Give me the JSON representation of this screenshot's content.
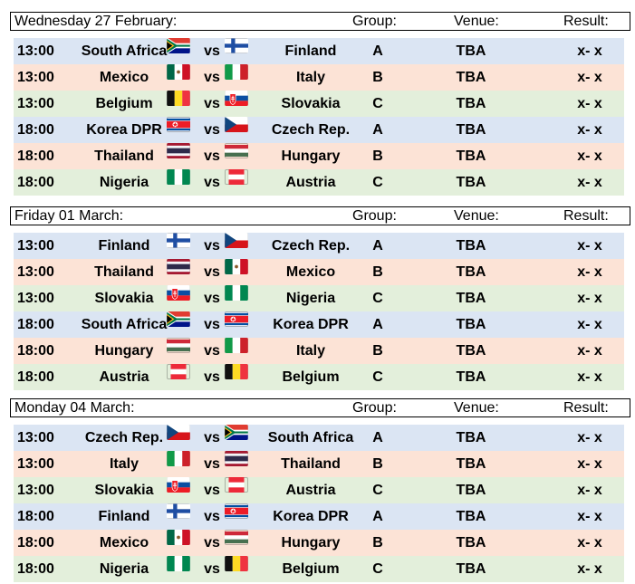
{
  "columns": {
    "group": "Group:",
    "venue": "Venue:",
    "result": "Result:"
  },
  "colors": {
    "A": "#dbe5f3",
    "B": "#fce3d6",
    "C": "#e3efdb"
  },
  "days": [
    {
      "date": "Wednesday 27 February:",
      "matches": [
        {
          "time": "13:00",
          "home": "South Africa",
          "home_flag": "south-africa",
          "vs": "vs",
          "away": "Finland",
          "away_flag": "finland",
          "group": "A",
          "venue": "TBA",
          "result": "x- x"
        },
        {
          "time": "13:00",
          "home": "Mexico",
          "home_flag": "mexico",
          "vs": "vs",
          "away": "Italy",
          "away_flag": "italy",
          "group": "B",
          "venue": "TBA",
          "result": "x- x"
        },
        {
          "time": "13:00",
          "home": "Belgium",
          "home_flag": "belgium",
          "vs": "vs",
          "away": "Slovakia",
          "away_flag": "slovakia",
          "group": "C",
          "venue": "TBA",
          "result": "x- x"
        },
        {
          "time": "18:00",
          "home": "Korea DPR",
          "home_flag": "korea-dpr",
          "vs": "vs",
          "away": "Czech Rep.",
          "away_flag": "czech",
          "group": "A",
          "venue": "TBA",
          "result": "x- x"
        },
        {
          "time": "18:00",
          "home": "Thailand",
          "home_flag": "thailand",
          "vs": "vs",
          "away": "Hungary",
          "away_flag": "hungary",
          "group": "B",
          "venue": "TBA",
          "result": "x- x"
        },
        {
          "time": "18:00",
          "home": "Nigeria",
          "home_flag": "nigeria",
          "vs": "vs",
          "away": "Austria",
          "away_flag": "austria",
          "group": "C",
          "venue": "TBA",
          "result": "x- x"
        }
      ]
    },
    {
      "date": "Friday 01 March:",
      "matches": [
        {
          "time": "13:00",
          "home": "Finland",
          "home_flag": "finland",
          "vs": "vs",
          "away": "Czech Rep.",
          "away_flag": "czech",
          "group": "A",
          "venue": "TBA",
          "result": "x- x"
        },
        {
          "time": "13:00",
          "home": "Thailand",
          "home_flag": "thailand",
          "vs": "vs",
          "away": "Mexico",
          "away_flag": "mexico",
          "group": "B",
          "venue": "TBA",
          "result": "x- x"
        },
        {
          "time": "13:00",
          "home": "Slovakia",
          "home_flag": "slovakia",
          "vs": "vs",
          "away": "Nigeria",
          "away_flag": "nigeria",
          "group": "C",
          "venue": "TBA",
          "result": "x- x"
        },
        {
          "time": "18:00",
          "home": "South Africa",
          "home_flag": "south-africa",
          "vs": "vs",
          "away": "Korea DPR",
          "away_flag": "korea-dpr",
          "group": "A",
          "venue": "TBA",
          "result": "x- x"
        },
        {
          "time": "18:00",
          "home": "Hungary",
          "home_flag": "hungary",
          "vs": "vs",
          "away": "Italy",
          "away_flag": "italy",
          "group": "B",
          "venue": "TBA",
          "result": "x- x"
        },
        {
          "time": "18:00",
          "home": "Austria",
          "home_flag": "austria",
          "vs": "vs",
          "away": "Belgium",
          "away_flag": "belgium",
          "group": "C",
          "venue": "TBA",
          "result": "x- x"
        }
      ]
    },
    {
      "date": "Monday 04 March:",
      "matches": [
        {
          "time": "13:00",
          "home": "Czech Rep.",
          "home_flag": "czech",
          "vs": "vs",
          "away": "South Africa",
          "away_flag": "south-africa",
          "group": "A",
          "venue": "TBA",
          "result": "x- x"
        },
        {
          "time": "13:00",
          "home": "Italy",
          "home_flag": "italy",
          "vs": "vs",
          "away": "Thailand",
          "away_flag": "thailand",
          "group": "B",
          "venue": "TBA",
          "result": "x- x"
        },
        {
          "time": "13:00",
          "home": "Slovakia",
          "home_flag": "slovakia",
          "vs": "vs",
          "away": "Austria",
          "away_flag": "austria",
          "group": "C",
          "venue": "TBA",
          "result": "x- x"
        },
        {
          "time": "18:00",
          "home": "Finland",
          "home_flag": "finland",
          "vs": "vs",
          "away": "Korea DPR",
          "away_flag": "korea-dpr",
          "group": "A",
          "venue": "TBA",
          "result": "x- x"
        },
        {
          "time": "18:00",
          "home": "Mexico",
          "home_flag": "mexico",
          "vs": "vs",
          "away": "Hungary",
          "away_flag": "hungary",
          "group": "B",
          "venue": "TBA",
          "result": "x- x"
        },
        {
          "time": "18:00",
          "home": "Nigeria",
          "home_flag": "nigeria",
          "vs": "vs",
          "away": "Belgium",
          "away_flag": "belgium",
          "group": "C",
          "venue": "TBA",
          "result": "x- x"
        }
      ]
    }
  ]
}
